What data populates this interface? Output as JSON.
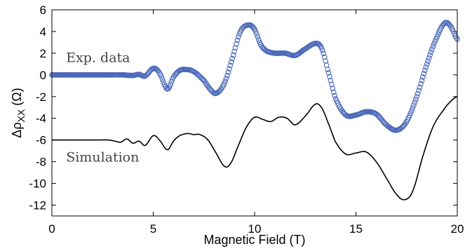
{
  "chart_data": {
    "type": "scatter",
    "xlabel": "Magnetic Field  (T)",
    "ylabel_main": "Δρ",
    "ylabel_sub": "XX",
    "ylabel_unit": " (Ω)",
    "xlim": [
      0,
      20
    ],
    "ylim": [
      -13,
      6
    ],
    "xticks": [
      0,
      5,
      10,
      15,
      20
    ],
    "yticks": [
      6,
      4,
      2,
      0,
      -2,
      -4,
      -6,
      -8,
      -10,
      -12
    ],
    "grid": false,
    "annotations": [
      {
        "text": "Exp. data",
        "x": 0.7,
        "y": 1.2
      },
      {
        "text": "Simulation",
        "x": 0.7,
        "y": -8.0
      }
    ],
    "series": [
      {
        "label": "Exp. data",
        "style": "markers",
        "color": "#4a69b8",
        "x": [
          0,
          1,
          2,
          3,
          3.5,
          4,
          4.3,
          4.6,
          5.0,
          5.3,
          5.7,
          6.0,
          6.3,
          6.6,
          7.0,
          7.5,
          7.8,
          8.1,
          8.5,
          8.9,
          9.3,
          9.7,
          10.0,
          10.3,
          10.6,
          11.0,
          11.5,
          12.0,
          12.5,
          13.0,
          13.3,
          13.6,
          14.0,
          14.5,
          15.0,
          15.5,
          16.0,
          16.5,
          17.0,
          17.5,
          18.0,
          18.5,
          19.0,
          19.4,
          19.7,
          20.0
        ],
        "y": [
          0,
          0,
          0,
          0,
          0,
          -0.05,
          0.05,
          -0.1,
          0.6,
          0.2,
          -1.3,
          -0.2,
          0.4,
          0.5,
          0.3,
          -0.5,
          -1.3,
          -1.7,
          -0.8,
          1.5,
          4.0,
          4.6,
          4.2,
          2.8,
          2.2,
          2.0,
          2.0,
          1.8,
          2.4,
          2.9,
          2.5,
          0.5,
          -2.2,
          -3.7,
          -3.7,
          -3.4,
          -3.6,
          -4.6,
          -5.1,
          -4.3,
          -2.0,
          1.0,
          3.5,
          4.8,
          4.4,
          3.3
        ]
      },
      {
        "label": "Simulation",
        "style": "line",
        "color": "#000000",
        "x": [
          0,
          1,
          2,
          2.8,
          3.1,
          3.4,
          3.7,
          4.0,
          4.3,
          4.6,
          5.0,
          5.3,
          5.7,
          6.0,
          6.3,
          6.7,
          7.0,
          7.3,
          7.7,
          8.1,
          8.5,
          8.8,
          9.2,
          9.6,
          10.0,
          10.4,
          10.8,
          11.2,
          11.6,
          12.0,
          12.5,
          13.0,
          13.3,
          13.6,
          14.0,
          14.5,
          15.0,
          15.5,
          16.0,
          16.5,
          17.0,
          17.4,
          17.8,
          18.3,
          18.8,
          19.3,
          19.7,
          20.0
        ],
        "y": [
          -6,
          -6,
          -6,
          -6,
          -6.1,
          -6.2,
          -5.9,
          -6.3,
          -6.1,
          -6.5,
          -5.6,
          -6.0,
          -6.9,
          -6.1,
          -5.6,
          -5.4,
          -5.5,
          -5.5,
          -6.0,
          -7.2,
          -8.4,
          -8.2,
          -6.5,
          -4.8,
          -3.9,
          -4.1,
          -4.3,
          -3.9,
          -4.0,
          -4.6,
          -3.8,
          -2.7,
          -3.0,
          -4.3,
          -6.2,
          -7.3,
          -7.2,
          -7.1,
          -8.0,
          -9.5,
          -11.0,
          -11.5,
          -10.7,
          -7.5,
          -4.8,
          -3.3,
          -2.4,
          -2.0
        ]
      }
    ]
  }
}
